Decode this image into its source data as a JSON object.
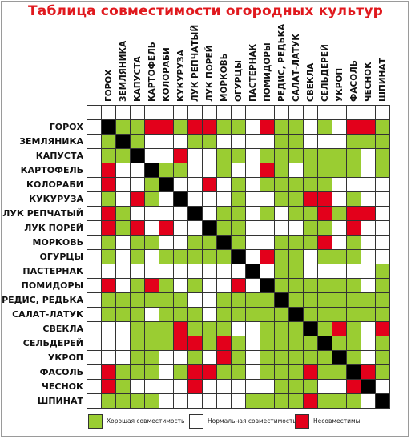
{
  "title": "Таблица совместимости огородных культур",
  "crops": [
    "ГОРОХ",
    "ЗЕМЛЯНИКА",
    "КАПУСТА",
    "КАРТОФЕЛЬ",
    "КОЛОРАБИ",
    "КУКУРУЗА",
    "ЛУК РЕПЧАТЫЙ",
    "ЛУК ПОРЕЙ",
    "МОРКОВЬ",
    "ОГУРЦЫ",
    "ПАСТЕРНАК",
    "ПОМИДОРЫ",
    "РЕДИС, РЕДЬКА",
    "САЛАТ-ЛАТУК",
    "СВЕКЛА",
    "СЕЛЬДЕРЕЙ",
    "УКРОП",
    "ФАСОЛЬ",
    "ЧЕСНОК",
    "ШПИНАТ"
  ],
  "matrix": [
    "XGGRRGRRGGWRGGWGWRRG",
    "GXGWWWGGWWWWGGWWWGGG",
    "GGXWWRWWGGWGGGGGGGWG",
    "RWWXGGWWGWWRGWGGGGWG",
    "RWWGXWWRWGWGGGGGWWWW",
    "GWRGWXWWWGWWGGRRWGWW",
    "RGWWWWXWGGWGWGGRGRRW",
    "RGRWRWWXGGWWWWGGWRWW",
    "GWGGWWGGXGWWGGGRWGWW",
    "GWGWGGGGGXWRGGWGGGWW",
    "WWWWWWWWWWXWGGWWWWWG",
    "RWGRGWGWWRWXGGGGGGWG",
    "GGGGGGWWGGGGXGGGGGGG",
    "GGGWGGGWGGGGGXGGGGGG",
    "WWGGGRGGGWWGGGXGRGWR",
    "WWGGGRRGRGWGGGGXGGWG",
    "WWGGWWGWRGWGGGGGXGWG",
    "RGGGWGRRGGWGGGRGGXRG",
    "RGWWWWRWWWWWGGGWWRXW",
    "GGGGWWWWWWGGGGRGGGWX"
  ],
  "colors": {
    "G": "#9acd32",
    "W": "#ffffff",
    "R": "#e3001b",
    "X": "#000000"
  },
  "legend": [
    {
      "code": "G",
      "label": "Хорошая совместимость"
    },
    {
      "code": "W",
      "label": "Нормальная совместимость"
    },
    {
      "code": "R",
      "label": "Несовместимы"
    }
  ]
}
